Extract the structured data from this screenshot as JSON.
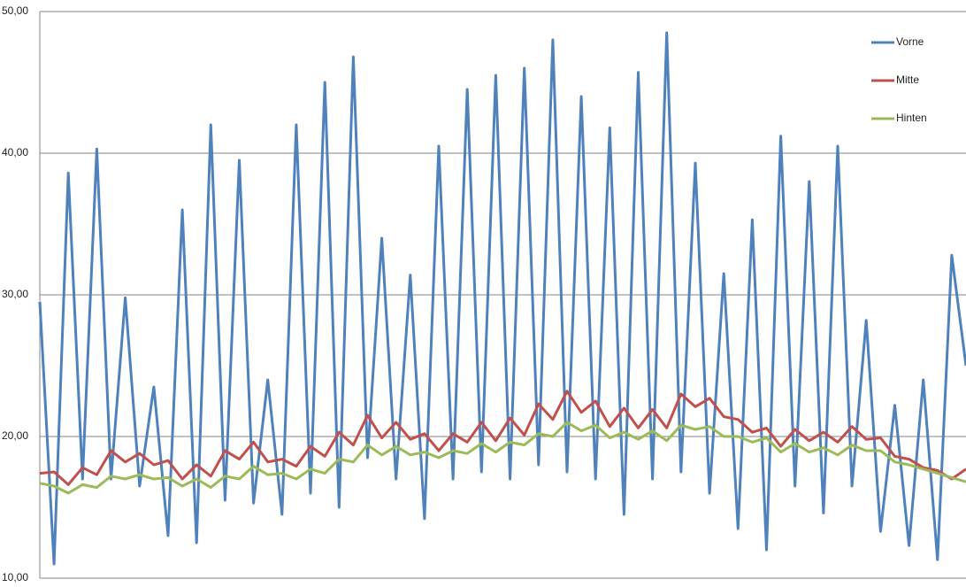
{
  "chart_data": {
    "type": "line",
    "ylim": [
      10,
      50
    ],
    "yticks": [
      {
        "value": 10,
        "label": "10,00"
      },
      {
        "value": 20,
        "label": "20,00"
      },
      {
        "value": 30,
        "label": "30,00"
      },
      {
        "value": 40,
        "label": "40,00"
      },
      {
        "value": 50,
        "label": "50,00"
      }
    ],
    "grid": true,
    "legend": "right",
    "series": [
      {
        "name": "Vorne",
        "color": "#4f81bd",
        "values": [
          29.5,
          11,
          38.6,
          17,
          40.3,
          17,
          29.8,
          16.5,
          23.5,
          13,
          36,
          12.5,
          42,
          15.5,
          39.5,
          15.3,
          24,
          14.5,
          42,
          16,
          45,
          15,
          46.8,
          18.5,
          34,
          17,
          31.4,
          14.2,
          40.5,
          17,
          44.5,
          17.5,
          45.5,
          17,
          46,
          18,
          48,
          17.5,
          44,
          17,
          41.8,
          14.5,
          45.7,
          17,
          48.5,
          17.5,
          39.3,
          16,
          31.5,
          13.5,
          35.3,
          12,
          41.2,
          16.5,
          38,
          14.6,
          40.5,
          16.5,
          28.2,
          13.3,
          22.2,
          12.3,
          24,
          11.3,
          32.8,
          25
        ]
      },
      {
        "name": "Mitte",
        "color": "#c0504d",
        "values": [
          17.4,
          17.5,
          16.6,
          17.8,
          17.3,
          19,
          18.2,
          18.8,
          18,
          18.3,
          17,
          18,
          17.2,
          19,
          18.4,
          19.6,
          18.2,
          18.4,
          17.9,
          19.3,
          18.6,
          20.3,
          19.4,
          21.5,
          19.9,
          21,
          19.8,
          20.2,
          19,
          20.2,
          19.6,
          21,
          19.7,
          21.3,
          20.1,
          22.3,
          21.2,
          23.2,
          21.7,
          22.5,
          20.7,
          22,
          20.6,
          21.9,
          20.6,
          23,
          22.1,
          22.7,
          21.4,
          21.2,
          20.3,
          20.6,
          19.3,
          20.5,
          19.7,
          20.3,
          19.6,
          20.7,
          19.8,
          19.9,
          18.6,
          18.4,
          17.8,
          17.6,
          17,
          17.7
        ]
      },
      {
        "name": "Hinten",
        "color": "#9bbb59",
        "values": [
          16.7,
          16.5,
          16,
          16.6,
          16.4,
          17.2,
          17,
          17.3,
          17,
          17.1,
          16.5,
          17,
          16.4,
          17.2,
          17,
          17.9,
          17.3,
          17.4,
          17,
          17.7,
          17.4,
          18.4,
          18.2,
          19.4,
          18.7,
          19.3,
          18.7,
          18.9,
          18.5,
          19,
          18.8,
          19.5,
          18.9,
          19.6,
          19.4,
          20.2,
          20,
          21,
          20.4,
          20.8,
          19.9,
          20.3,
          19.8,
          20.4,
          19.7,
          20.8,
          20.5,
          20.7,
          20,
          20,
          19.6,
          19.9,
          18.9,
          19.5,
          18.9,
          19.2,
          18.7,
          19.4,
          19,
          19,
          18.2,
          18,
          17.7,
          17.4,
          17.1,
          16.8
        ]
      }
    ]
  }
}
